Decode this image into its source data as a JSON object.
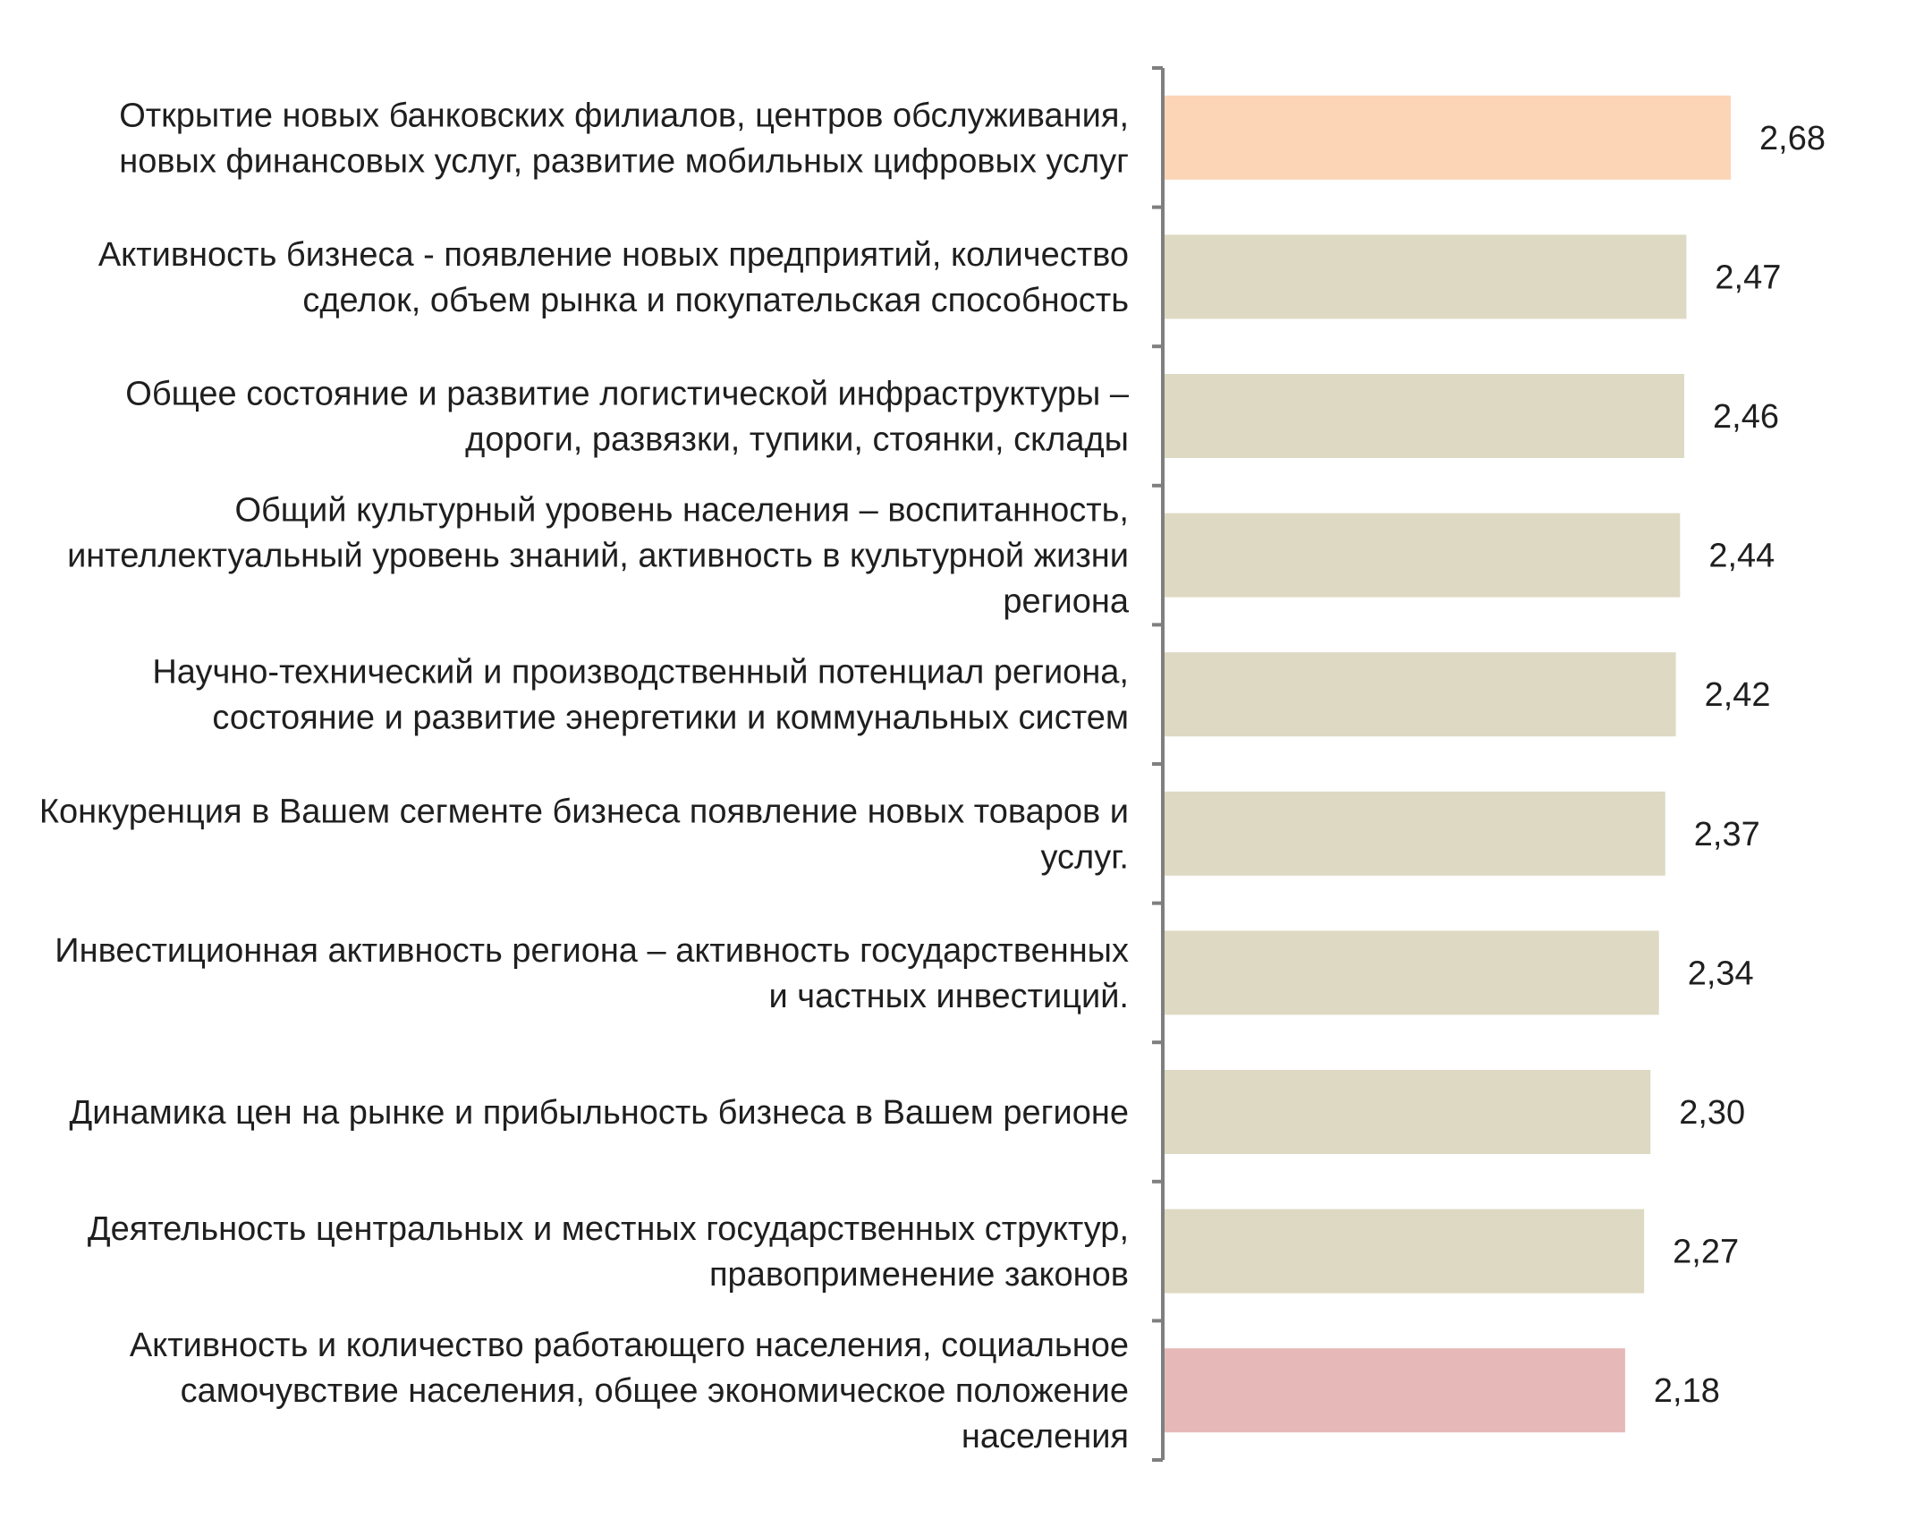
{
  "chart_data": {
    "type": "bar",
    "orientation": "horizontal",
    "title": "",
    "xlabel": "",
    "ylabel": "",
    "grid": false,
    "legend": "none",
    "xlim": [
      0,
      2.68
    ],
    "categories": [
      [
        "Открытие  новых банковских филиалов, центров обслуживания,",
        "новых финансовых услуг, развитие мобильных цифровых услуг"
      ],
      [
        "Активность  бизнеса - появление новых предприятий, количество",
        "сделок, объем рынка и покупательская способность"
      ],
      [
        "Общее состояние и развитие логистической инфраструктуры –",
        "дороги, развязки, тупики, стоянки, склады"
      ],
      [
        "Общий культурный уровень населения – воспитанность,",
        "интеллектуальный уровень знаний, активность в культурной жизни",
        "региона"
      ],
      [
        "Научно-технический и производственный потенциал региона,",
        "состояние и развитие энергетики и коммунальных систем"
      ],
      [
        "Конкуренция в Вашем сегменте бизнеса появление новых товаров и",
        "услуг."
      ],
      [
        "Инвестиционная активность региона – активность государственных",
        "и частных  инвестиций."
      ],
      [
        "Динамика цен на рынке и прибыльность бизнеса в Вашем регионе"
      ],
      [
        "Деятельность центральных и местных государственных структур,",
        "правоприменение законов"
      ],
      [
        "Активность  и количество работающего населения, социальное",
        "самочувствие населения, общее экономическое положение",
        "населения"
      ]
    ],
    "values": [
      2.68,
      2.47,
      2.46,
      2.44,
      2.42,
      2.37,
      2.34,
      2.3,
      2.27,
      2.18
    ],
    "value_labels": [
      "2,68",
      "2,47",
      "2,46",
      "2,44",
      "2,42",
      "2,37",
      "2,34",
      "2,30",
      "2,27",
      "2,18"
    ],
    "colors": [
      "#FBD5B5",
      "#DDD9C3",
      "#DDD9C3",
      "#DDD9C3",
      "#DDD9C3",
      "#DDD9C3",
      "#DDD9C3",
      "#DDD9C3",
      "#DDD9C3",
      "#E6B9B8"
    ],
    "axis_color": "#7f7f7f"
  }
}
